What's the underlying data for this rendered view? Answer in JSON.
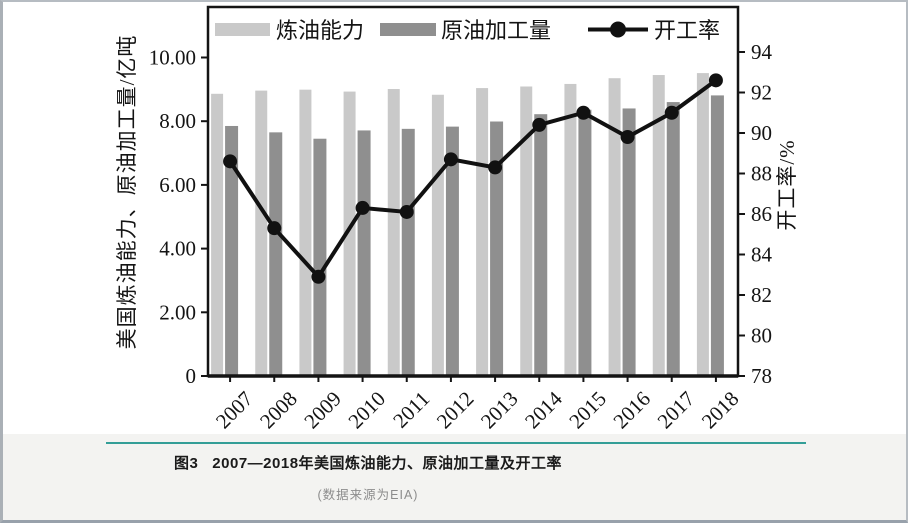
{
  "window": {
    "background_color": "#ffffff",
    "footer_background_color": "#f3f3f1",
    "frame_border_color": "#b6bcc2"
  },
  "chart_data": {
    "type": "bar",
    "subtype": "combo-bar-line-dual-axis",
    "title": "",
    "grid": false,
    "legend_position": "top-inside",
    "categories": [
      "2007",
      "2008",
      "2009",
      "2010",
      "2011",
      "2012",
      "2013",
      "2014",
      "2015",
      "2016",
      "2017",
      "2018"
    ],
    "series": [
      {
        "key": "capacity",
        "name": "炼油能力",
        "type": "bar",
        "axis": "left",
        "color": "#c9c9c9",
        "values": [
          8.86,
          8.96,
          8.99,
          8.93,
          9.01,
          8.83,
          9.04,
          9.09,
          9.17,
          9.35,
          9.45,
          9.51
        ]
      },
      {
        "key": "throughput",
        "name": "原油加工量",
        "type": "bar",
        "axis": "left",
        "color": "#8f8f8f",
        "values": [
          7.85,
          7.65,
          7.45,
          7.71,
          7.76,
          7.83,
          7.99,
          8.22,
          8.36,
          8.4,
          8.6,
          8.81
        ]
      },
      {
        "key": "utilization",
        "name": "开工率",
        "type": "line",
        "axis": "right",
        "color": "#111111",
        "values": [
          88.6,
          85.3,
          82.9,
          86.3,
          86.1,
          88.7,
          88.3,
          90.4,
          91.0,
          89.8,
          91.0,
          92.6
        ]
      }
    ],
    "left_axis": {
      "title": "美国炼油能力、原油加工量/亿吨",
      "tick_labels": [
        "0",
        "2.00",
        "4.00",
        "6.00",
        "8.00",
        "10.00"
      ],
      "tick_values": [
        0,
        2,
        4,
        6,
        8,
        10
      ],
      "range": [
        0,
        10
      ]
    },
    "right_axis": {
      "title": "开工率/%",
      "tick_labels": [
        "78",
        "80",
        "82",
        "84",
        "86",
        "88",
        "90",
        "92",
        "94"
      ],
      "tick_values": [
        78,
        80,
        82,
        84,
        86,
        88,
        90,
        92,
        94
      ],
      "range": [
        78,
        94
      ]
    }
  },
  "caption": {
    "figure_label": "图3",
    "title": "2007—2018年美国炼油能力、原油加工量及开工率",
    "source": "(数据来源为EIA)",
    "rule_color": "#339e97"
  }
}
